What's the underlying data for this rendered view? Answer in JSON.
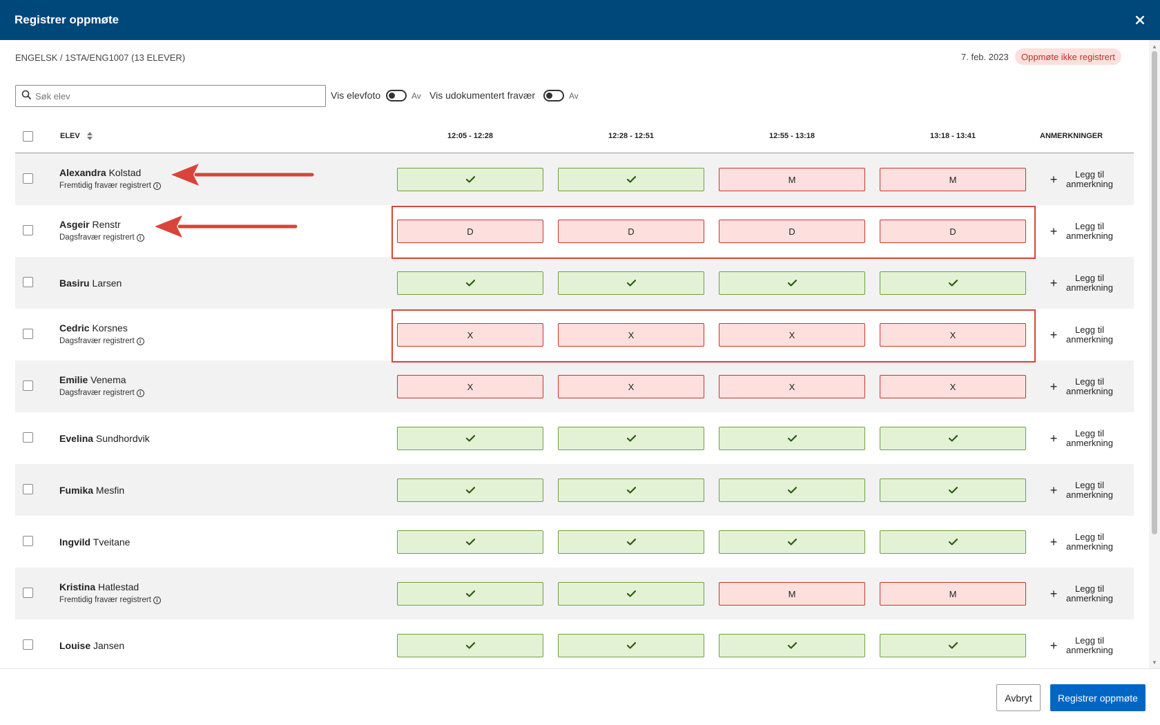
{
  "header": {
    "title": "Registrer oppmøte",
    "close_icon": "×"
  },
  "meta": {
    "course": "ENGELSK / 1STA/ENG1007 (13 ELEVER)",
    "date": "7. feb. 2023",
    "status_badge": "Oppmøte ikke registrert"
  },
  "search": {
    "placeholder": "Søk elev"
  },
  "toggles": [
    {
      "label": "Vis elevfoto",
      "value": "Av"
    },
    {
      "label": "Vis udokumentert fravær",
      "value": "Av"
    }
  ],
  "table": {
    "col_student": "ELEV",
    "periods": [
      "12:05 - 12:28",
      "12:28 - 12:51",
      "12:55 - 13:18",
      "13:18 - 13:41"
    ],
    "col_notes": "ANMERKNINGER",
    "add_note_label": "Legg til anmerkning",
    "present_mark": "✓",
    "rows": [
      {
        "first": "Alexandra",
        "last": "Kolstad",
        "note": "Fremtidig fravær registrert",
        "marks": [
          "P",
          "P",
          "M",
          "M"
        ]
      },
      {
        "first": "Asgeir",
        "last": "Renstr",
        "note": "Dagsfravær registrert",
        "marks": [
          "D",
          "D",
          "D",
          "D"
        ]
      },
      {
        "first": "Basiru",
        "last": "Larsen",
        "note": "",
        "marks": [
          "P",
          "P",
          "P",
          "P"
        ]
      },
      {
        "first": "Cedric",
        "last": "Korsnes",
        "note": "Dagsfravær registrert",
        "marks": [
          "X",
          "X",
          "X",
          "X"
        ]
      },
      {
        "first": "Emilie",
        "last": "Venema",
        "note": "Dagsfravær registrert",
        "marks": [
          "X",
          "X",
          "X",
          "X"
        ]
      },
      {
        "first": "Evelina",
        "last": "Sundhordvik",
        "note": "",
        "marks": [
          "P",
          "P",
          "P",
          "P"
        ]
      },
      {
        "first": "Fumika",
        "last": "Mesfin",
        "note": "",
        "marks": [
          "P",
          "P",
          "P",
          "P"
        ]
      },
      {
        "first": "Ingvild",
        "last": "Tveitane",
        "note": "",
        "marks": [
          "P",
          "P",
          "P",
          "P"
        ]
      },
      {
        "first": "Kristina",
        "last": "Hatlestad",
        "note": "Fremtidig fravær registrert",
        "marks": [
          "P",
          "P",
          "M",
          "M"
        ]
      },
      {
        "first": "Louise",
        "last": "Jansen",
        "note": "",
        "marks": [
          "P",
          "P",
          "P",
          "P"
        ]
      }
    ]
  },
  "footer": {
    "cancel_label": "Avbryt",
    "submit_label": "Registrer oppmøte"
  },
  "colors": {
    "header_bg": "#00477a",
    "present_bg": "#e3f1d5",
    "present_border": "#6ea23f",
    "absent_bg": "#fde0de",
    "absent_border": "#c9342a",
    "highlight": "#d9443a",
    "primary": "#0066c6"
  }
}
